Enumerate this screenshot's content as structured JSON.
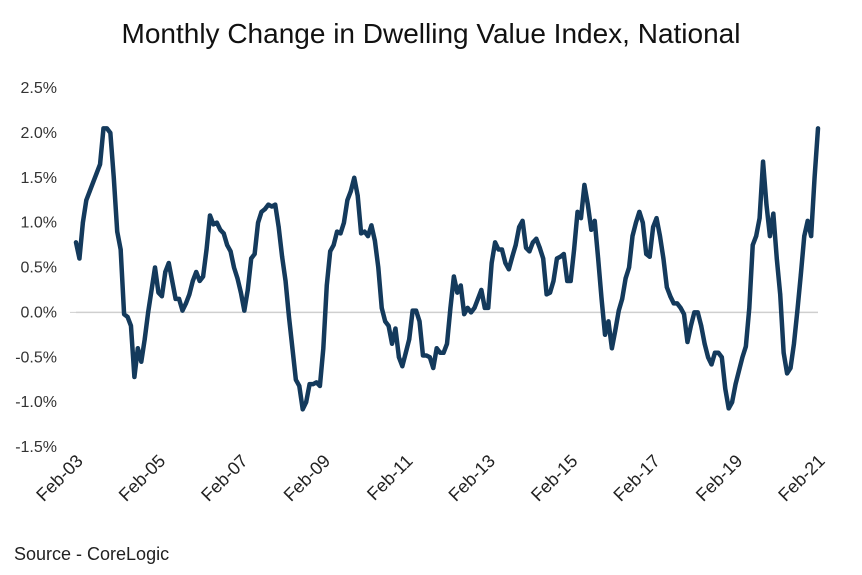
{
  "chart_data": {
    "type": "line",
    "title": "Monthly Change in Dwelling Value Index, National",
    "source": "Source - CoreLogic",
    "color": "#143a5c",
    "ylim": [
      -1.5,
      2.5
    ],
    "yticks": [
      2.5,
      2.0,
      1.5,
      1.0,
      0.5,
      0.0,
      -0.5,
      -1.0,
      -1.5
    ],
    "ytick_labels": [
      "2.5%",
      "2.0%",
      "1.5%",
      "1.0%",
      "0.5%",
      "0.0%",
      "-0.5%",
      "-1.0%",
      "-1.5%"
    ],
    "x_range": [
      "2003-02",
      "2021-02"
    ],
    "xtick_labels": [
      "Feb-03",
      "Feb-05",
      "Feb-07",
      "Feb-09",
      "Feb-11",
      "Feb-13",
      "Feb-15",
      "Feb-17",
      "Feb-19",
      "Feb-21"
    ],
    "series": [
      {
        "points": [
          [
            "2003-02",
            0.78
          ],
          [
            "2003-03",
            0.6
          ],
          [
            "2003-04",
            1.0
          ],
          [
            "2003-05",
            1.25
          ],
          [
            "2003-06",
            1.35
          ],
          [
            "2003-07",
            1.45
          ],
          [
            "2003-08",
            1.55
          ],
          [
            "2003-09",
            1.65
          ],
          [
            "2003-10",
            2.05
          ],
          [
            "2003-11",
            2.05
          ],
          [
            "2003-12",
            2.0
          ],
          [
            "2004-01",
            1.5
          ],
          [
            "2004-02",
            0.9
          ],
          [
            "2004-03",
            0.7
          ],
          [
            "2004-04",
            -0.02
          ],
          [
            "2004-05",
            -0.05
          ],
          [
            "2004-06",
            -0.15
          ],
          [
            "2004-07",
            -0.72
          ],
          [
            "2004-08",
            -0.4
          ],
          [
            "2004-09",
            -0.55
          ],
          [
            "2004-10",
            -0.3
          ],
          [
            "2004-11",
            0.0
          ],
          [
            "2004-12",
            0.25
          ],
          [
            "2005-01",
            0.5
          ],
          [
            "2005-02",
            0.22
          ],
          [
            "2005-03",
            0.18
          ],
          [
            "2005-04",
            0.45
          ],
          [
            "2005-05",
            0.55
          ],
          [
            "2005-06",
            0.35
          ],
          [
            "2005-07",
            0.15
          ],
          [
            "2005-08",
            0.15
          ],
          [
            "2005-09",
            0.02
          ],
          [
            "2005-10",
            0.1
          ],
          [
            "2005-11",
            0.2
          ],
          [
            "2005-12",
            0.35
          ],
          [
            "2006-01",
            0.45
          ],
          [
            "2006-02",
            0.35
          ],
          [
            "2006-03",
            0.4
          ],
          [
            "2006-04",
            0.7
          ],
          [
            "2006-05",
            1.08
          ],
          [
            "2006-06",
            0.98
          ],
          [
            "2006-07",
            1.0
          ],
          [
            "2006-08",
            0.92
          ],
          [
            "2006-09",
            0.88
          ],
          [
            "2006-10",
            0.75
          ],
          [
            "2006-11",
            0.68
          ],
          [
            "2006-12",
            0.5
          ],
          [
            "2007-01",
            0.38
          ],
          [
            "2007-02",
            0.22
          ],
          [
            "2007-03",
            0.02
          ],
          [
            "2007-04",
            0.25
          ],
          [
            "2007-05",
            0.6
          ],
          [
            "2007-06",
            0.65
          ],
          [
            "2007-07",
            1.0
          ],
          [
            "2007-08",
            1.12
          ],
          [
            "2007-09",
            1.15
          ],
          [
            "2007-10",
            1.2
          ],
          [
            "2007-11",
            1.18
          ],
          [
            "2007-12",
            1.2
          ],
          [
            "2008-01",
            0.95
          ],
          [
            "2008-02",
            0.62
          ],
          [
            "2008-03",
            0.35
          ],
          [
            "2008-04",
            -0.05
          ],
          [
            "2008-05",
            -0.4
          ],
          [
            "2008-06",
            -0.75
          ],
          [
            "2008-07",
            -0.82
          ],
          [
            "2008-08",
            -1.08
          ],
          [
            "2008-09",
            -1.0
          ],
          [
            "2008-10",
            -0.8
          ],
          [
            "2008-11",
            -0.8
          ],
          [
            "2008-12",
            -0.78
          ],
          [
            "2009-01",
            -0.82
          ],
          [
            "2009-02",
            -0.4
          ],
          [
            "2009-03",
            0.3
          ],
          [
            "2009-04",
            0.68
          ],
          [
            "2009-05",
            0.75
          ],
          [
            "2009-06",
            0.9
          ],
          [
            "2009-07",
            0.88
          ],
          [
            "2009-08",
            1.0
          ],
          [
            "2009-09",
            1.25
          ],
          [
            "2009-10",
            1.35
          ],
          [
            "2009-11",
            1.5
          ],
          [
            "2009-12",
            1.3
          ],
          [
            "2010-01",
            0.88
          ],
          [
            "2010-02",
            0.9
          ],
          [
            "2010-03",
            0.85
          ],
          [
            "2010-04",
            0.97
          ],
          [
            "2010-05",
            0.8
          ],
          [
            "2010-06",
            0.5
          ],
          [
            "2010-07",
            0.05
          ],
          [
            "2010-08",
            -0.1
          ],
          [
            "2010-09",
            -0.15
          ],
          [
            "2010-10",
            -0.35
          ],
          [
            "2010-11",
            -0.18
          ],
          [
            "2010-12",
            -0.5
          ],
          [
            "2011-01",
            -0.6
          ],
          [
            "2011-02",
            -0.45
          ],
          [
            "2011-03",
            -0.3
          ],
          [
            "2011-04",
            0.02
          ],
          [
            "2011-05",
            0.02
          ],
          [
            "2011-06",
            -0.1
          ],
          [
            "2011-07",
            -0.48
          ],
          [
            "2011-08",
            -0.48
          ],
          [
            "2011-09",
            -0.5
          ],
          [
            "2011-10",
            -0.62
          ],
          [
            "2011-11",
            -0.4
          ],
          [
            "2011-12",
            -0.45
          ],
          [
            "2012-01",
            -0.45
          ],
          [
            "2012-02",
            -0.35
          ],
          [
            "2012-03",
            0.05
          ],
          [
            "2012-04",
            0.4
          ],
          [
            "2012-05",
            0.22
          ],
          [
            "2012-06",
            0.3
          ],
          [
            "2012-07",
            -0.02
          ],
          [
            "2012-08",
            0.05
          ],
          [
            "2012-09",
            0.0
          ],
          [
            "2012-10",
            0.05
          ],
          [
            "2012-11",
            0.15
          ],
          [
            "2012-12",
            0.25
          ],
          [
            "2013-01",
            0.05
          ],
          [
            "2013-02",
            0.05
          ],
          [
            "2013-03",
            0.55
          ],
          [
            "2013-04",
            0.78
          ],
          [
            "2013-05",
            0.7
          ],
          [
            "2013-06",
            0.7
          ],
          [
            "2013-07",
            0.55
          ],
          [
            "2013-08",
            0.48
          ],
          [
            "2013-09",
            0.62
          ],
          [
            "2013-10",
            0.75
          ],
          [
            "2013-11",
            0.95
          ],
          [
            "2013-12",
            1.02
          ],
          [
            "2014-01",
            0.72
          ],
          [
            "2014-02",
            0.68
          ],
          [
            "2014-03",
            0.78
          ],
          [
            "2014-04",
            0.82
          ],
          [
            "2014-05",
            0.72
          ],
          [
            "2014-06",
            0.6
          ],
          [
            "2014-07",
            0.2
          ],
          [
            "2014-08",
            0.22
          ],
          [
            "2014-09",
            0.35
          ],
          [
            "2014-10",
            0.6
          ],
          [
            "2014-11",
            0.62
          ],
          [
            "2014-12",
            0.65
          ],
          [
            "2015-01",
            0.35
          ],
          [
            "2015-02",
            0.35
          ],
          [
            "2015-03",
            0.7
          ],
          [
            "2015-04",
            1.12
          ],
          [
            "2015-05",
            1.05
          ],
          [
            "2015-06",
            1.42
          ],
          [
            "2015-07",
            1.2
          ],
          [
            "2015-08",
            0.92
          ],
          [
            "2015-09",
            1.02
          ],
          [
            "2015-10",
            0.6
          ],
          [
            "2015-11",
            0.15
          ],
          [
            "2015-12",
            -0.25
          ],
          [
            "2016-01",
            -0.1
          ],
          [
            "2016-02",
            -0.4
          ],
          [
            "2016-03",
            -0.2
          ],
          [
            "2016-04",
            0.02
          ],
          [
            "2016-05",
            0.15
          ],
          [
            "2016-06",
            0.38
          ],
          [
            "2016-07",
            0.5
          ],
          [
            "2016-08",
            0.85
          ],
          [
            "2016-09",
            1.0
          ],
          [
            "2016-10",
            1.12
          ],
          [
            "2016-11",
            1.0
          ],
          [
            "2016-12",
            0.65
          ],
          [
            "2017-01",
            0.62
          ],
          [
            "2017-02",
            0.95
          ],
          [
            "2017-03",
            1.05
          ],
          [
            "2017-04",
            0.85
          ],
          [
            "2017-05",
            0.6
          ],
          [
            "2017-06",
            0.28
          ],
          [
            "2017-07",
            0.18
          ],
          [
            "2017-08",
            0.1
          ],
          [
            "2017-09",
            0.1
          ],
          [
            "2017-10",
            0.05
          ],
          [
            "2017-11",
            -0.02
          ],
          [
            "2017-12",
            -0.33
          ],
          [
            "2018-01",
            -0.15
          ],
          [
            "2018-02",
            0.0
          ],
          [
            "2018-03",
            0.0
          ],
          [
            "2018-04",
            -0.15
          ],
          [
            "2018-05",
            -0.35
          ],
          [
            "2018-06",
            -0.5
          ],
          [
            "2018-07",
            -0.58
          ],
          [
            "2018-08",
            -0.45
          ],
          [
            "2018-09",
            -0.45
          ],
          [
            "2018-10",
            -0.5
          ],
          [
            "2018-11",
            -0.85
          ],
          [
            "2018-12",
            -1.07
          ],
          [
            "2019-01",
            -1.0
          ],
          [
            "2019-02",
            -0.8
          ],
          [
            "2019-03",
            -0.65
          ],
          [
            "2019-04",
            -0.5
          ],
          [
            "2019-05",
            -0.38
          ],
          [
            "2019-06",
            0.05
          ],
          [
            "2019-07",
            0.75
          ],
          [
            "2019-08",
            0.85
          ],
          [
            "2019-09",
            1.05
          ],
          [
            "2019-10",
            1.68
          ],
          [
            "2019-11",
            1.2
          ],
          [
            "2019-12",
            0.85
          ],
          [
            "2020-01",
            1.1
          ],
          [
            "2020-02",
            0.6
          ],
          [
            "2020-03",
            0.2
          ],
          [
            "2020-04",
            -0.45
          ],
          [
            "2020-05",
            -0.68
          ],
          [
            "2020-06",
            -0.62
          ],
          [
            "2020-07",
            -0.35
          ],
          [
            "2020-08",
            0.02
          ],
          [
            "2020-09",
            0.42
          ],
          [
            "2020-10",
            0.85
          ],
          [
            "2020-11",
            1.02
          ],
          [
            "2020-12",
            0.85
          ],
          [
            "2021-01",
            1.5
          ],
          [
            "2021-02",
            2.05
          ]
        ]
      }
    ]
  }
}
